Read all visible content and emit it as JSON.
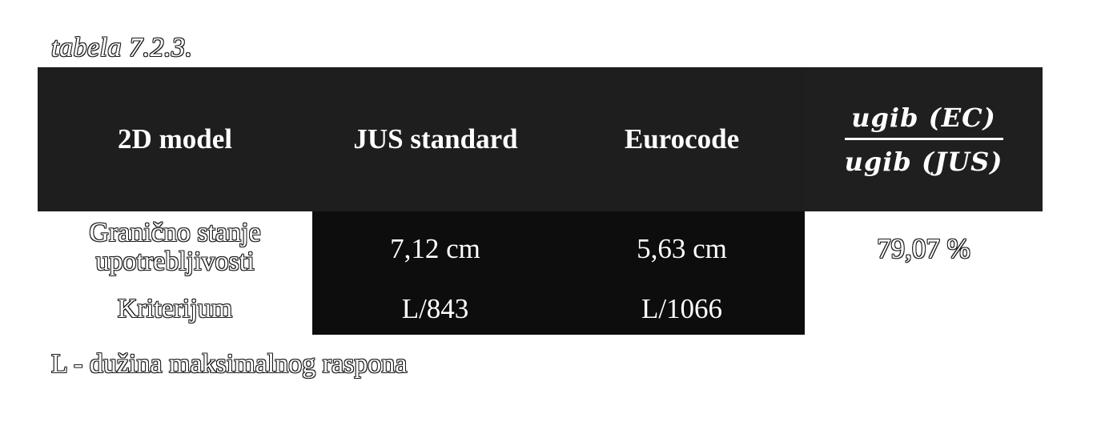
{
  "caption": "tabela 7.2.3.",
  "header": {
    "col1": "2D model",
    "col2": "JUS standard",
    "col3": "Eurocode",
    "ratio_numerator": "ugib (EC)",
    "ratio_denominator": "ugib (JUS)"
  },
  "rows": [
    {
      "label_line1": "Granično stanje",
      "label_line2": "upotrebljivosti",
      "jus": "7,12 cm",
      "eurocode": "5,63 cm"
    },
    {
      "label": "Kriterijum",
      "jus": "L/843",
      "eurocode": "L/1066"
    }
  ],
  "ratio_value": "79,07 %",
  "footnote": "L - dužina maksimalnog raspona",
  "colors": {
    "header_bg": "#1e1e1e",
    "value_block_bg": "#0d0d0d",
    "text_light": "#ffffff",
    "outline": "#1a1a1a"
  }
}
